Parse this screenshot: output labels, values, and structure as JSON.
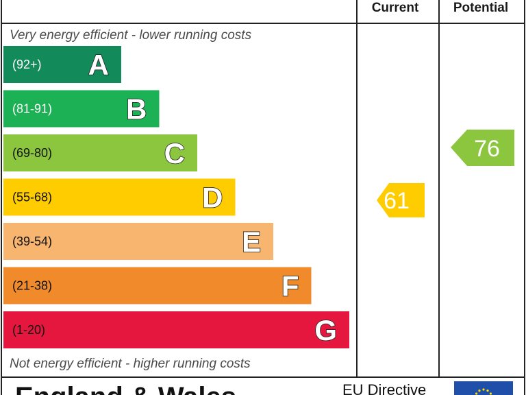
{
  "chart_data": {
    "type": "bar",
    "columns": {
      "current": "Current",
      "potential": "Potential"
    },
    "top_caption": "Very energy efficient - lower running costs",
    "bottom_caption": "Not energy efficient - higher running costs",
    "bands": [
      {
        "letter": "A",
        "range": "(92+)",
        "color": "#138a5a",
        "range_text": "light"
      },
      {
        "letter": "B",
        "range": "(81-91)",
        "color": "#1db155",
        "range_text": "light"
      },
      {
        "letter": "C",
        "range": "(69-80)",
        "color": "#8cc63f",
        "range_text": "dark"
      },
      {
        "letter": "D",
        "range": "(55-68)",
        "color": "#ffcc00",
        "range_text": "dark"
      },
      {
        "letter": "E",
        "range": "(39-54)",
        "color": "#f7b56f",
        "range_text": "dark"
      },
      {
        "letter": "F",
        "range": "(21-38)",
        "color": "#f08a2a",
        "range_text": "dark"
      },
      {
        "letter": "G",
        "range": "(1-20)",
        "color": "#e5173f",
        "range_text": "dark"
      }
    ],
    "current": {
      "value": 61,
      "band": "D",
      "color": "#ffcc00"
    },
    "potential": {
      "value": 76,
      "band": "C",
      "color": "#8cc63f"
    }
  },
  "footer": {
    "left_text": "England & Wales",
    "right_text": "EU Directive",
    "eu_flag_color": "#1f4fa8",
    "eu_star_color": "#ffdd00"
  }
}
